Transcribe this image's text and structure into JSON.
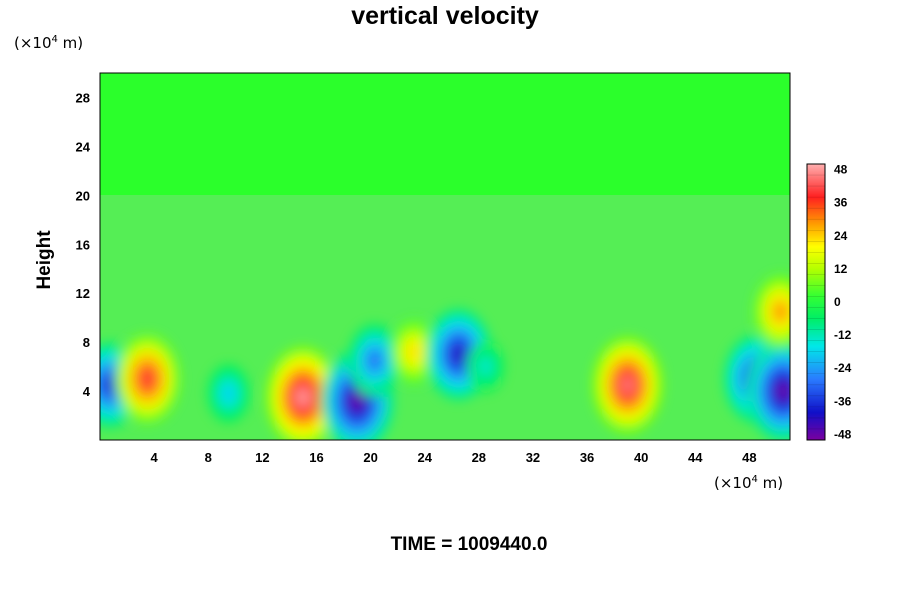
{
  "chart_data": {
    "type": "heatmap",
    "title": "vertical velocity",
    "ylabel": "Height",
    "x_unit": {
      "prefix": "(×10",
      "exp": "4",
      "suffix": " m)"
    },
    "y_unit": {
      "prefix": "(×10",
      "exp": "4",
      "suffix": " m)"
    },
    "xlim": [
      0,
      51
    ],
    "ylim": [
      0,
      30
    ],
    "xticks": [
      4,
      8,
      12,
      16,
      20,
      24,
      28,
      32,
      36,
      40,
      44,
      48
    ],
    "yticks": [
      4,
      8,
      12,
      16,
      20,
      24,
      28
    ],
    "colorbar": {
      "min": -50,
      "max": 50,
      "ticks": [
        48,
        36,
        24,
        12,
        0,
        -12,
        -24,
        -36,
        -48
      ]
    },
    "features": [
      {
        "x": 0.7,
        "y": 4.5,
        "value": -38
      },
      {
        "x": 3.5,
        "y": 5.0,
        "value": 40
      },
      {
        "x": 9.5,
        "y": 3.8,
        "value": -20
      },
      {
        "x": 15.0,
        "y": 3.5,
        "value": 48
      },
      {
        "x": 19.0,
        "y": 3.2,
        "value": -48
      },
      {
        "x": 20.3,
        "y": 6.5,
        "value": -30
      },
      {
        "x": 23.2,
        "y": 7.2,
        "value": 24
      },
      {
        "x": 26.5,
        "y": 7.0,
        "value": -42
      },
      {
        "x": 28.5,
        "y": 6.0,
        "value": -15
      },
      {
        "x": 39.0,
        "y": 4.5,
        "value": 45
      },
      {
        "x": 48.5,
        "y": 5.0,
        "value": -40
      },
      {
        "x": 50.5,
        "y": 4.0,
        "value": -48
      },
      {
        "x": 50.3,
        "y": 10.5,
        "value": 30
      }
    ],
    "time_label": "TIME = 1009440.0"
  }
}
